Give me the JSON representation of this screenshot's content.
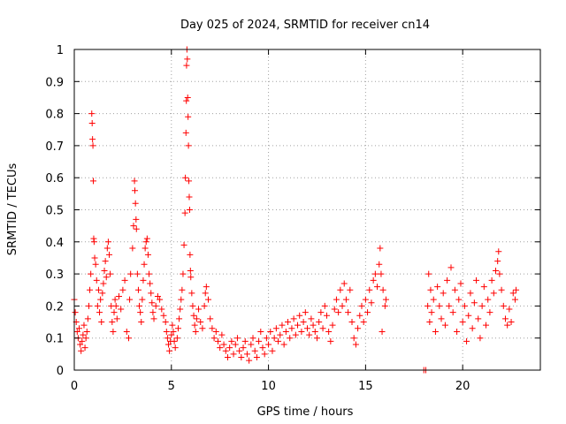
{
  "chart_data": {
    "type": "scatter",
    "title": "Day 025 of 2024, SRMTID for receiver cn14",
    "xlabel": "GPS time / hours",
    "ylabel": "SRMTID / TECUs",
    "xlim": [
      0,
      24
    ],
    "ylim": [
      0,
      1
    ],
    "x_ticks": [
      0,
      5,
      10,
      15,
      20
    ],
    "y_ticks": [
      0,
      0.1,
      0.2,
      0.3,
      0.4,
      0.5,
      0.6,
      0.7,
      0.8,
      0.9,
      1
    ],
    "x_tick_labels": [
      "0",
      "5",
      "10",
      "15",
      "20"
    ],
    "y_tick_labels": [
      "0",
      "0.1",
      "0.2",
      "0.3",
      "0.4",
      "0.5",
      "0.6",
      "0.7",
      "0.8",
      "0.9",
      "1"
    ],
    "grid": true,
    "marker": "+",
    "marker_color": "#ff0000",
    "series": [
      {
        "name": "SRMTID",
        "points": [
          [
            0.0,
            0.22
          ],
          [
            0.05,
            0.18
          ],
          [
            0.1,
            0.15
          ],
          [
            0.15,
            0.12
          ],
          [
            0.2,
            0.1
          ],
          [
            0.25,
            0.13
          ],
          [
            0.3,
            0.08
          ],
          [
            0.35,
            0.06
          ],
          [
            0.4,
            0.09
          ],
          [
            0.45,
            0.11
          ],
          [
            0.5,
            0.14
          ],
          [
            0.55,
            0.07
          ],
          [
            0.6,
            0.1
          ],
          [
            0.65,
            0.12
          ],
          [
            0.7,
            0.16
          ],
          [
            0.75,
            0.2
          ],
          [
            0.8,
            0.25
          ],
          [
            0.85,
            0.3
          ],
          [
            0.9,
            0.8
          ],
          [
            0.92,
            0.77
          ],
          [
            0.94,
            0.72
          ],
          [
            0.96,
            0.7
          ],
          [
            0.98,
            0.59
          ],
          [
            1.0,
            0.41
          ],
          [
            1.02,
            0.4
          ],
          [
            1.05,
            0.35
          ],
          [
            1.1,
            0.33
          ],
          [
            1.15,
            0.28
          ],
          [
            1.2,
            0.2
          ],
          [
            1.25,
            0.25
          ],
          [
            1.3,
            0.18
          ],
          [
            1.35,
            0.22
          ],
          [
            1.4,
            0.15
          ],
          [
            1.45,
            0.24
          ],
          [
            1.5,
            0.27
          ],
          [
            1.55,
            0.31
          ],
          [
            1.6,
            0.34
          ],
          [
            1.65,
            0.29
          ],
          [
            1.7,
            0.38
          ],
          [
            1.75,
            0.4
          ],
          [
            1.8,
            0.36
          ],
          [
            1.85,
            0.3
          ],
          [
            1.9,
            0.2
          ],
          [
            1.95,
            0.15
          ],
          [
            2.0,
            0.12
          ],
          [
            2.05,
            0.18
          ],
          [
            2.1,
            0.22
          ],
          [
            2.15,
            0.2
          ],
          [
            2.2,
            0.16
          ],
          [
            2.3,
            0.23
          ],
          [
            2.4,
            0.19
          ],
          [
            2.5,
            0.25
          ],
          [
            2.6,
            0.28
          ],
          [
            2.7,
            0.12
          ],
          [
            2.8,
            0.1
          ],
          [
            2.85,
            0.22
          ],
          [
            2.9,
            0.3
          ],
          [
            3.0,
            0.38
          ],
          [
            3.05,
            0.45
          ],
          [
            3.1,
            0.59
          ],
          [
            3.12,
            0.56
          ],
          [
            3.15,
            0.52
          ],
          [
            3.18,
            0.47
          ],
          [
            3.2,
            0.44
          ],
          [
            3.25,
            0.3
          ],
          [
            3.3,
            0.25
          ],
          [
            3.35,
            0.2
          ],
          [
            3.4,
            0.18
          ],
          [
            3.45,
            0.15
          ],
          [
            3.5,
            0.22
          ],
          [
            3.55,
            0.28
          ],
          [
            3.6,
            0.33
          ],
          [
            3.65,
            0.38
          ],
          [
            3.7,
            0.4
          ],
          [
            3.75,
            0.41
          ],
          [
            3.8,
            0.36
          ],
          [
            3.85,
            0.3
          ],
          [
            3.9,
            0.27
          ],
          [
            3.95,
            0.24
          ],
          [
            4.0,
            0.21
          ],
          [
            4.05,
            0.18
          ],
          [
            4.1,
            0.16
          ],
          [
            4.2,
            0.2
          ],
          [
            4.3,
            0.23
          ],
          [
            4.4,
            0.22
          ],
          [
            4.5,
            0.19
          ],
          [
            4.6,
            0.17
          ],
          [
            4.7,
            0.15
          ],
          [
            4.75,
            0.12
          ],
          [
            4.8,
            0.1
          ],
          [
            4.85,
            0.08
          ],
          [
            4.9,
            0.06
          ],
          [
            4.95,
            0.09
          ],
          [
            5.0,
            0.11
          ],
          [
            5.05,
            0.14
          ],
          [
            5.1,
            0.12
          ],
          [
            5.15,
            0.09
          ],
          [
            5.2,
            0.07
          ],
          [
            5.3,
            0.1
          ],
          [
            5.35,
            0.13
          ],
          [
            5.4,
            0.16
          ],
          [
            5.45,
            0.19
          ],
          [
            5.5,
            0.22
          ],
          [
            5.55,
            0.25
          ],
          [
            5.6,
            0.3
          ],
          [
            5.65,
            0.39
          ],
          [
            5.7,
            0.49
          ],
          [
            5.72,
            0.6
          ],
          [
            5.75,
            0.74
          ],
          [
            5.77,
            0.84
          ],
          [
            5.78,
            0.95
          ],
          [
            5.8,
            1.0
          ],
          [
            5.82,
            0.97
          ],
          [
            5.84,
            0.85
          ],
          [
            5.86,
            0.79
          ],
          [
            5.88,
            0.7
          ],
          [
            5.9,
            0.59
          ],
          [
            5.92,
            0.54
          ],
          [
            5.94,
            0.5
          ],
          [
            5.96,
            0.36
          ],
          [
            5.98,
            0.31
          ],
          [
            6.0,
            0.29
          ],
          [
            6.05,
            0.24
          ],
          [
            6.1,
            0.2
          ],
          [
            6.15,
            0.17
          ],
          [
            6.2,
            0.14
          ],
          [
            6.25,
            0.12
          ],
          [
            6.3,
            0.16
          ],
          [
            6.4,
            0.19
          ],
          [
            6.5,
            0.15
          ],
          [
            6.6,
            0.13
          ],
          [
            6.7,
            0.2
          ],
          [
            6.75,
            0.24
          ],
          [
            6.8,
            0.26
          ],
          [
            6.9,
            0.22
          ],
          [
            7.0,
            0.16
          ],
          [
            7.1,
            0.13
          ],
          [
            7.2,
            0.1
          ],
          [
            7.3,
            0.12
          ],
          [
            7.4,
            0.09
          ],
          [
            7.5,
            0.07
          ],
          [
            7.6,
            0.11
          ],
          [
            7.7,
            0.08
          ],
          [
            7.8,
            0.06
          ],
          [
            7.9,
            0.04
          ],
          [
            8.0,
            0.07
          ],
          [
            8.1,
            0.09
          ],
          [
            8.2,
            0.05
          ],
          [
            8.3,
            0.08
          ],
          [
            8.4,
            0.1
          ],
          [
            8.5,
            0.06
          ],
          [
            8.6,
            0.04
          ],
          [
            8.7,
            0.07
          ],
          [
            8.8,
            0.09
          ],
          [
            8.9,
            0.05
          ],
          [
            9.0,
            0.03
          ],
          [
            9.1,
            0.08
          ],
          [
            9.2,
            0.1
          ],
          [
            9.3,
            0.06
          ],
          [
            9.4,
            0.04
          ],
          [
            9.5,
            0.09
          ],
          [
            9.6,
            0.12
          ],
          [
            9.7,
            0.07
          ],
          [
            9.8,
            0.05
          ],
          [
            9.9,
            0.1
          ],
          [
            10.0,
            0.08
          ],
          [
            10.1,
            0.12
          ],
          [
            10.2,
            0.06
          ],
          [
            10.3,
            0.1
          ],
          [
            10.4,
            0.13
          ],
          [
            10.5,
            0.09
          ],
          [
            10.6,
            0.11
          ],
          [
            10.7,
            0.14
          ],
          [
            10.8,
            0.08
          ],
          [
            10.9,
            0.12
          ],
          [
            11.0,
            0.15
          ],
          [
            11.1,
            0.1
          ],
          [
            11.2,
            0.13
          ],
          [
            11.3,
            0.16
          ],
          [
            11.4,
            0.11
          ],
          [
            11.5,
            0.14
          ],
          [
            11.6,
            0.17
          ],
          [
            11.7,
            0.12
          ],
          [
            11.8,
            0.15
          ],
          [
            11.9,
            0.18
          ],
          [
            12.0,
            0.13
          ],
          [
            12.1,
            0.11
          ],
          [
            12.2,
            0.16
          ],
          [
            12.3,
            0.14
          ],
          [
            12.4,
            0.12
          ],
          [
            12.5,
            0.1
          ],
          [
            12.6,
            0.15
          ],
          [
            12.7,
            0.18
          ],
          [
            12.8,
            0.13
          ],
          [
            12.9,
            0.2
          ],
          [
            13.0,
            0.17
          ],
          [
            13.1,
            0.12
          ],
          [
            13.2,
            0.09
          ],
          [
            13.3,
            0.14
          ],
          [
            13.4,
            0.19
          ],
          [
            13.5,
            0.22
          ],
          [
            13.6,
            0.18
          ],
          [
            13.7,
            0.25
          ],
          [
            13.8,
            0.2
          ],
          [
            13.9,
            0.27
          ],
          [
            14.0,
            0.22
          ],
          [
            14.1,
            0.18
          ],
          [
            14.2,
            0.25
          ],
          [
            14.3,
            0.15
          ],
          [
            14.4,
            0.1
          ],
          [
            14.5,
            0.08
          ],
          [
            14.6,
            0.13
          ],
          [
            14.7,
            0.17
          ],
          [
            14.8,
            0.2
          ],
          [
            14.9,
            0.15
          ],
          [
            15.0,
            0.22
          ],
          [
            15.1,
            0.18
          ],
          [
            15.2,
            0.25
          ],
          [
            15.3,
            0.21
          ],
          [
            15.4,
            0.28
          ],
          [
            15.5,
            0.3
          ],
          [
            15.6,
            0.26
          ],
          [
            15.7,
            0.33
          ],
          [
            15.75,
            0.38
          ],
          [
            15.8,
            0.3
          ],
          [
            15.85,
            0.12
          ],
          [
            15.9,
            0.25
          ],
          [
            16.0,
            0.2
          ],
          [
            16.05,
            0.22
          ],
          [
            18.0,
            0.0
          ],
          [
            18.1,
            0.0
          ],
          [
            18.2,
            0.2
          ],
          [
            18.25,
            0.3
          ],
          [
            18.3,
            0.15
          ],
          [
            18.35,
            0.25
          ],
          [
            18.4,
            0.18
          ],
          [
            18.5,
            0.22
          ],
          [
            18.6,
            0.12
          ],
          [
            18.7,
            0.26
          ],
          [
            18.8,
            0.2
          ],
          [
            18.9,
            0.16
          ],
          [
            19.0,
            0.24
          ],
          [
            19.1,
            0.14
          ],
          [
            19.2,
            0.28
          ],
          [
            19.3,
            0.2
          ],
          [
            19.4,
            0.32
          ],
          [
            19.5,
            0.18
          ],
          [
            19.6,
            0.25
          ],
          [
            19.7,
            0.12
          ],
          [
            19.8,
            0.22
          ],
          [
            19.9,
            0.27
          ],
          [
            20.0,
            0.15
          ],
          [
            20.1,
            0.2
          ],
          [
            20.2,
            0.09
          ],
          [
            20.3,
            0.17
          ],
          [
            20.4,
            0.24
          ],
          [
            20.5,
            0.13
          ],
          [
            20.6,
            0.21
          ],
          [
            20.7,
            0.28
          ],
          [
            20.8,
            0.16
          ],
          [
            20.9,
            0.1
          ],
          [
            21.0,
            0.2
          ],
          [
            21.1,
            0.26
          ],
          [
            21.2,
            0.14
          ],
          [
            21.3,
            0.22
          ],
          [
            21.4,
            0.18
          ],
          [
            21.5,
            0.28
          ],
          [
            21.6,
            0.24
          ],
          [
            21.7,
            0.31
          ],
          [
            21.8,
            0.34
          ],
          [
            21.85,
            0.37
          ],
          [
            21.9,
            0.3
          ],
          [
            22.0,
            0.25
          ],
          [
            22.1,
            0.2
          ],
          [
            22.2,
            0.16
          ],
          [
            22.3,
            0.14
          ],
          [
            22.4,
            0.19
          ],
          [
            22.5,
            0.15
          ],
          [
            22.6,
            0.24
          ],
          [
            22.7,
            0.22
          ],
          [
            22.75,
            0.25
          ]
        ]
      }
    ]
  }
}
